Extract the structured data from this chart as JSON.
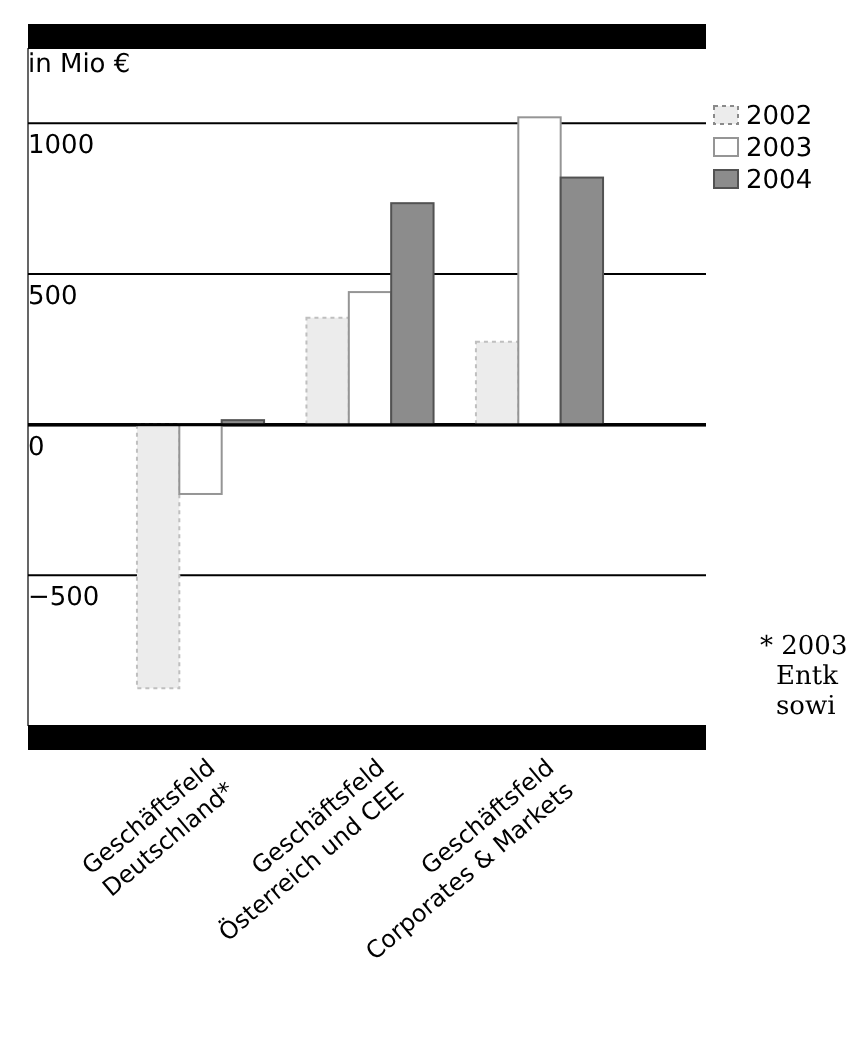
{
  "chart_data": {
    "type": "bar",
    "ylabel": "in Mio €",
    "categories": [
      "Geschäftsfeld Deutschland*",
      "Geschäftsfeld Österreich und CEE",
      "Geschäftsfeld Corporates & Markets"
    ],
    "series": [
      {
        "name": "2002",
        "color": "#ececec",
        "values": [
          -875,
          355,
          275
        ]
      },
      {
        "name": "2003",
        "color": "#ffffff",
        "values": [
          -230,
          440,
          1020
        ]
      },
      {
        "name": "2004",
        "color": "#8c8c8c",
        "values": [
          15,
          735,
          820
        ]
      }
    ],
    "ylim": [
      -1000,
      1250
    ],
    "yticks": [
      -500,
      0,
      500,
      1000
    ],
    "grid": "y",
    "legend": "right",
    "annotations": [
      "* 2003",
      "Entk",
      "sowi"
    ]
  }
}
